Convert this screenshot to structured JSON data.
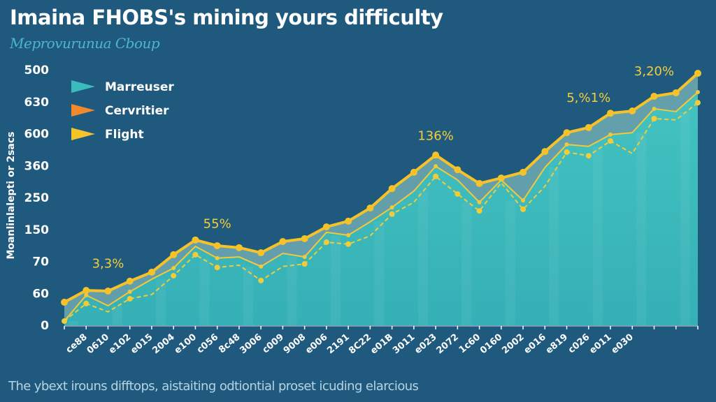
{
  "chart_data": {
    "type": "area",
    "title": "Imaina FHOBS's mining yours difficulty",
    "subtitle": "Meprovurunua Cboup",
    "xlabel": "",
    "ylabel": "Moanlinlalepti or 2sacs",
    "footnote": "The ybext irouns difftops, aistaiting odtiontial proset icuding elarcious",
    "ylim": [
      0,
      800
    ],
    "y_ticks": [
      {
        "value": 0,
        "label": "0"
      },
      {
        "value": 100,
        "label": "60"
      },
      {
        "value": 200,
        "label": "70"
      },
      {
        "value": 300,
        "label": "150"
      },
      {
        "value": 400,
        "label": "250"
      },
      {
        "value": 500,
        "label": "360"
      },
      {
        "value": 600,
        "label": "600"
      },
      {
        "value": 700,
        "label": "630"
      },
      {
        "value": 800,
        "label": "500"
      }
    ],
    "categories": [
      "",
      "ce88",
      "0610",
      "e102",
      "e015",
      "2004",
      "e100",
      "c056",
      "8c48",
      "3006",
      "c009",
      "9008",
      "e006",
      "2191",
      "8C22",
      "e01B",
      "3011",
      "e023",
      "2072",
      "1c60",
      "0160",
      "2002",
      "e016",
      "e819",
      "c026",
      "e011",
      "e030",
      "",
      "",
      ""
    ],
    "grid": false,
    "legend_position": "top-left",
    "series": [
      {
        "name": "Marreuser",
        "color": "#3bbcbc",
        "style": "area",
        "values": [
          72,
          109,
          107,
          138,
          166,
          221,
          267,
          249,
          243,
          227,
          262,
          271,
          308,
          326,
          367,
          428,
          479,
          533,
          487,
          444,
          461,
          479,
          544,
          603,
          619,
          664,
          671,
          717,
          728,
          789
        ]
      },
      {
        "name": "Cervritier",
        "color": "#f08a2c",
        "style": "line",
        "values": [
          13,
          94,
          61,
          105,
          144,
          179,
          247,
          210,
          214,
          184,
          225,
          214,
          291,
          282,
          324,
          369,
          420,
          498,
          455,
          385,
          455,
          391,
          494,
          566,
          560,
          597,
          603,
          678,
          669,
          730
        ]
      },
      {
        "name": "Flight",
        "color": "#f5c42a",
        "style": "dashed",
        "values": [
          13,
          68,
          42,
          83,
          96,
          155,
          221,
          181,
          188,
          140,
          184,
          192,
          260,
          254,
          280,
          348,
          385,
          466,
          411,
          358,
          446,
          363,
          435,
          542,
          531,
          577,
          538,
          647,
          643,
          697
        ]
      }
    ],
    "annotations": [
      {
        "text": "3,3%",
        "index": 2,
        "value": 180
      },
      {
        "text": "55%",
        "index": 7,
        "value": 305
      },
      {
        "text": "136%",
        "index": 17,
        "value": 580
      },
      {
        "text": "5,%1%",
        "index": 24,
        "value": 700
      },
      {
        "text": "3,20%",
        "index": 27,
        "value": 783
      }
    ]
  }
}
